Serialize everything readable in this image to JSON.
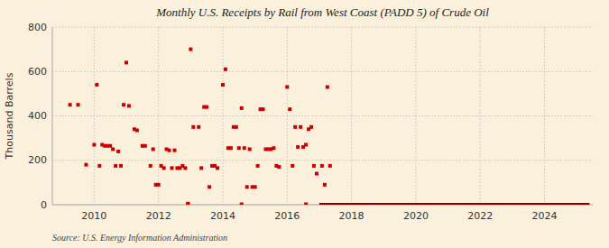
{
  "chart_data": {
    "type": "scatter",
    "title": "Monthly U.S. Receipts by Rail from West Coast (PADD 5) of Crude Oil",
    "ylabel": "Thousand Barrels",
    "annotation": "Source: U.S. Energy Information Administration",
    "xlim": [
      2008.7,
      2025.5
    ],
    "xticks": [
      2010,
      2012,
      2014,
      2016,
      2018,
      2020,
      2022,
      2024
    ],
    "ylim": [
      0,
      800
    ],
    "yticks": [
      0,
      200,
      400,
      600,
      800
    ],
    "grid": true,
    "series": [
      {
        "type": "line",
        "color": "#8b0000",
        "line_style": "solid",
        "x": [
          2017.0,
          2025.4
        ],
        "values": [
          0,
          0
        ]
      },
      {
        "type": "scatter",
        "color": "#cc0000",
        "marker": "square",
        "x": [
          2012.917,
          2014.583,
          2016.583
        ],
        "values": [
          2,
          2,
          2
        ]
      },
      {
        "type": "scatter",
        "color": "#cc0000",
        "marker": "square",
        "x": [
          2009.25,
          2009.5,
          2009.75,
          2010.0,
          2010.083,
          2010.167,
          2010.25,
          2010.333,
          2010.417,
          2010.5,
          2010.583,
          2010.667,
          2010.75,
          2010.833,
          2010.917,
          2011.0,
          2011.083,
          2011.25,
          2011.333,
          2011.5,
          2011.583,
          2011.75,
          2011.833,
          2011.917,
          2012.0,
          2012.083,
          2012.167,
          2012.25,
          2012.333,
          2012.417,
          2012.5,
          2012.583,
          2012.667,
          2012.75,
          2012.833,
          2012.917,
          2013.0,
          2013.083,
          2013.25,
          2013.333,
          2013.417,
          2013.5,
          2013.583,
          2013.667,
          2013.75,
          2013.833,
          2014.0,
          2014.083,
          2014.167,
          2014.25,
          2014.333,
          2014.417,
          2014.5,
          2014.583,
          2014.667,
          2014.75,
          2014.833,
          2014.917,
          2015.0,
          2015.083,
          2015.167,
          2015.25,
          2015.333,
          2015.417,
          2015.5,
          2015.583,
          2015.667,
          2015.75,
          2016.0,
          2016.083,
          2016.167,
          2016.25,
          2016.333,
          2016.417,
          2016.5,
          2016.583,
          2016.667,
          2016.75,
          2016.833,
          2016.917,
          2017.083,
          2017.167,
          2017.25,
          2017.333
        ],
        "values": [
          450,
          450,
          180,
          270,
          540,
          175,
          270,
          265,
          265,
          265,
          250,
          175,
          240,
          175,
          450,
          640,
          445,
          340,
          335,
          265,
          265,
          175,
          250,
          90,
          90,
          175,
          165,
          250,
          245,
          165,
          245,
          165,
          165,
          175,
          165,
          5,
          700,
          350,
          350,
          165,
          440,
          440,
          80,
          175,
          175,
          165,
          540,
          610,
          255,
          255,
          350,
          350,
          255,
          435,
          255,
          80,
          250,
          80,
          80,
          175,
          430,
          430,
          250,
          250,
          250,
          255,
          175,
          170,
          530,
          430,
          175,
          350,
          260,
          350,
          260,
          270,
          340,
          350,
          175,
          140,
          175,
          90,
          530,
          175
        ]
      }
    ]
  }
}
